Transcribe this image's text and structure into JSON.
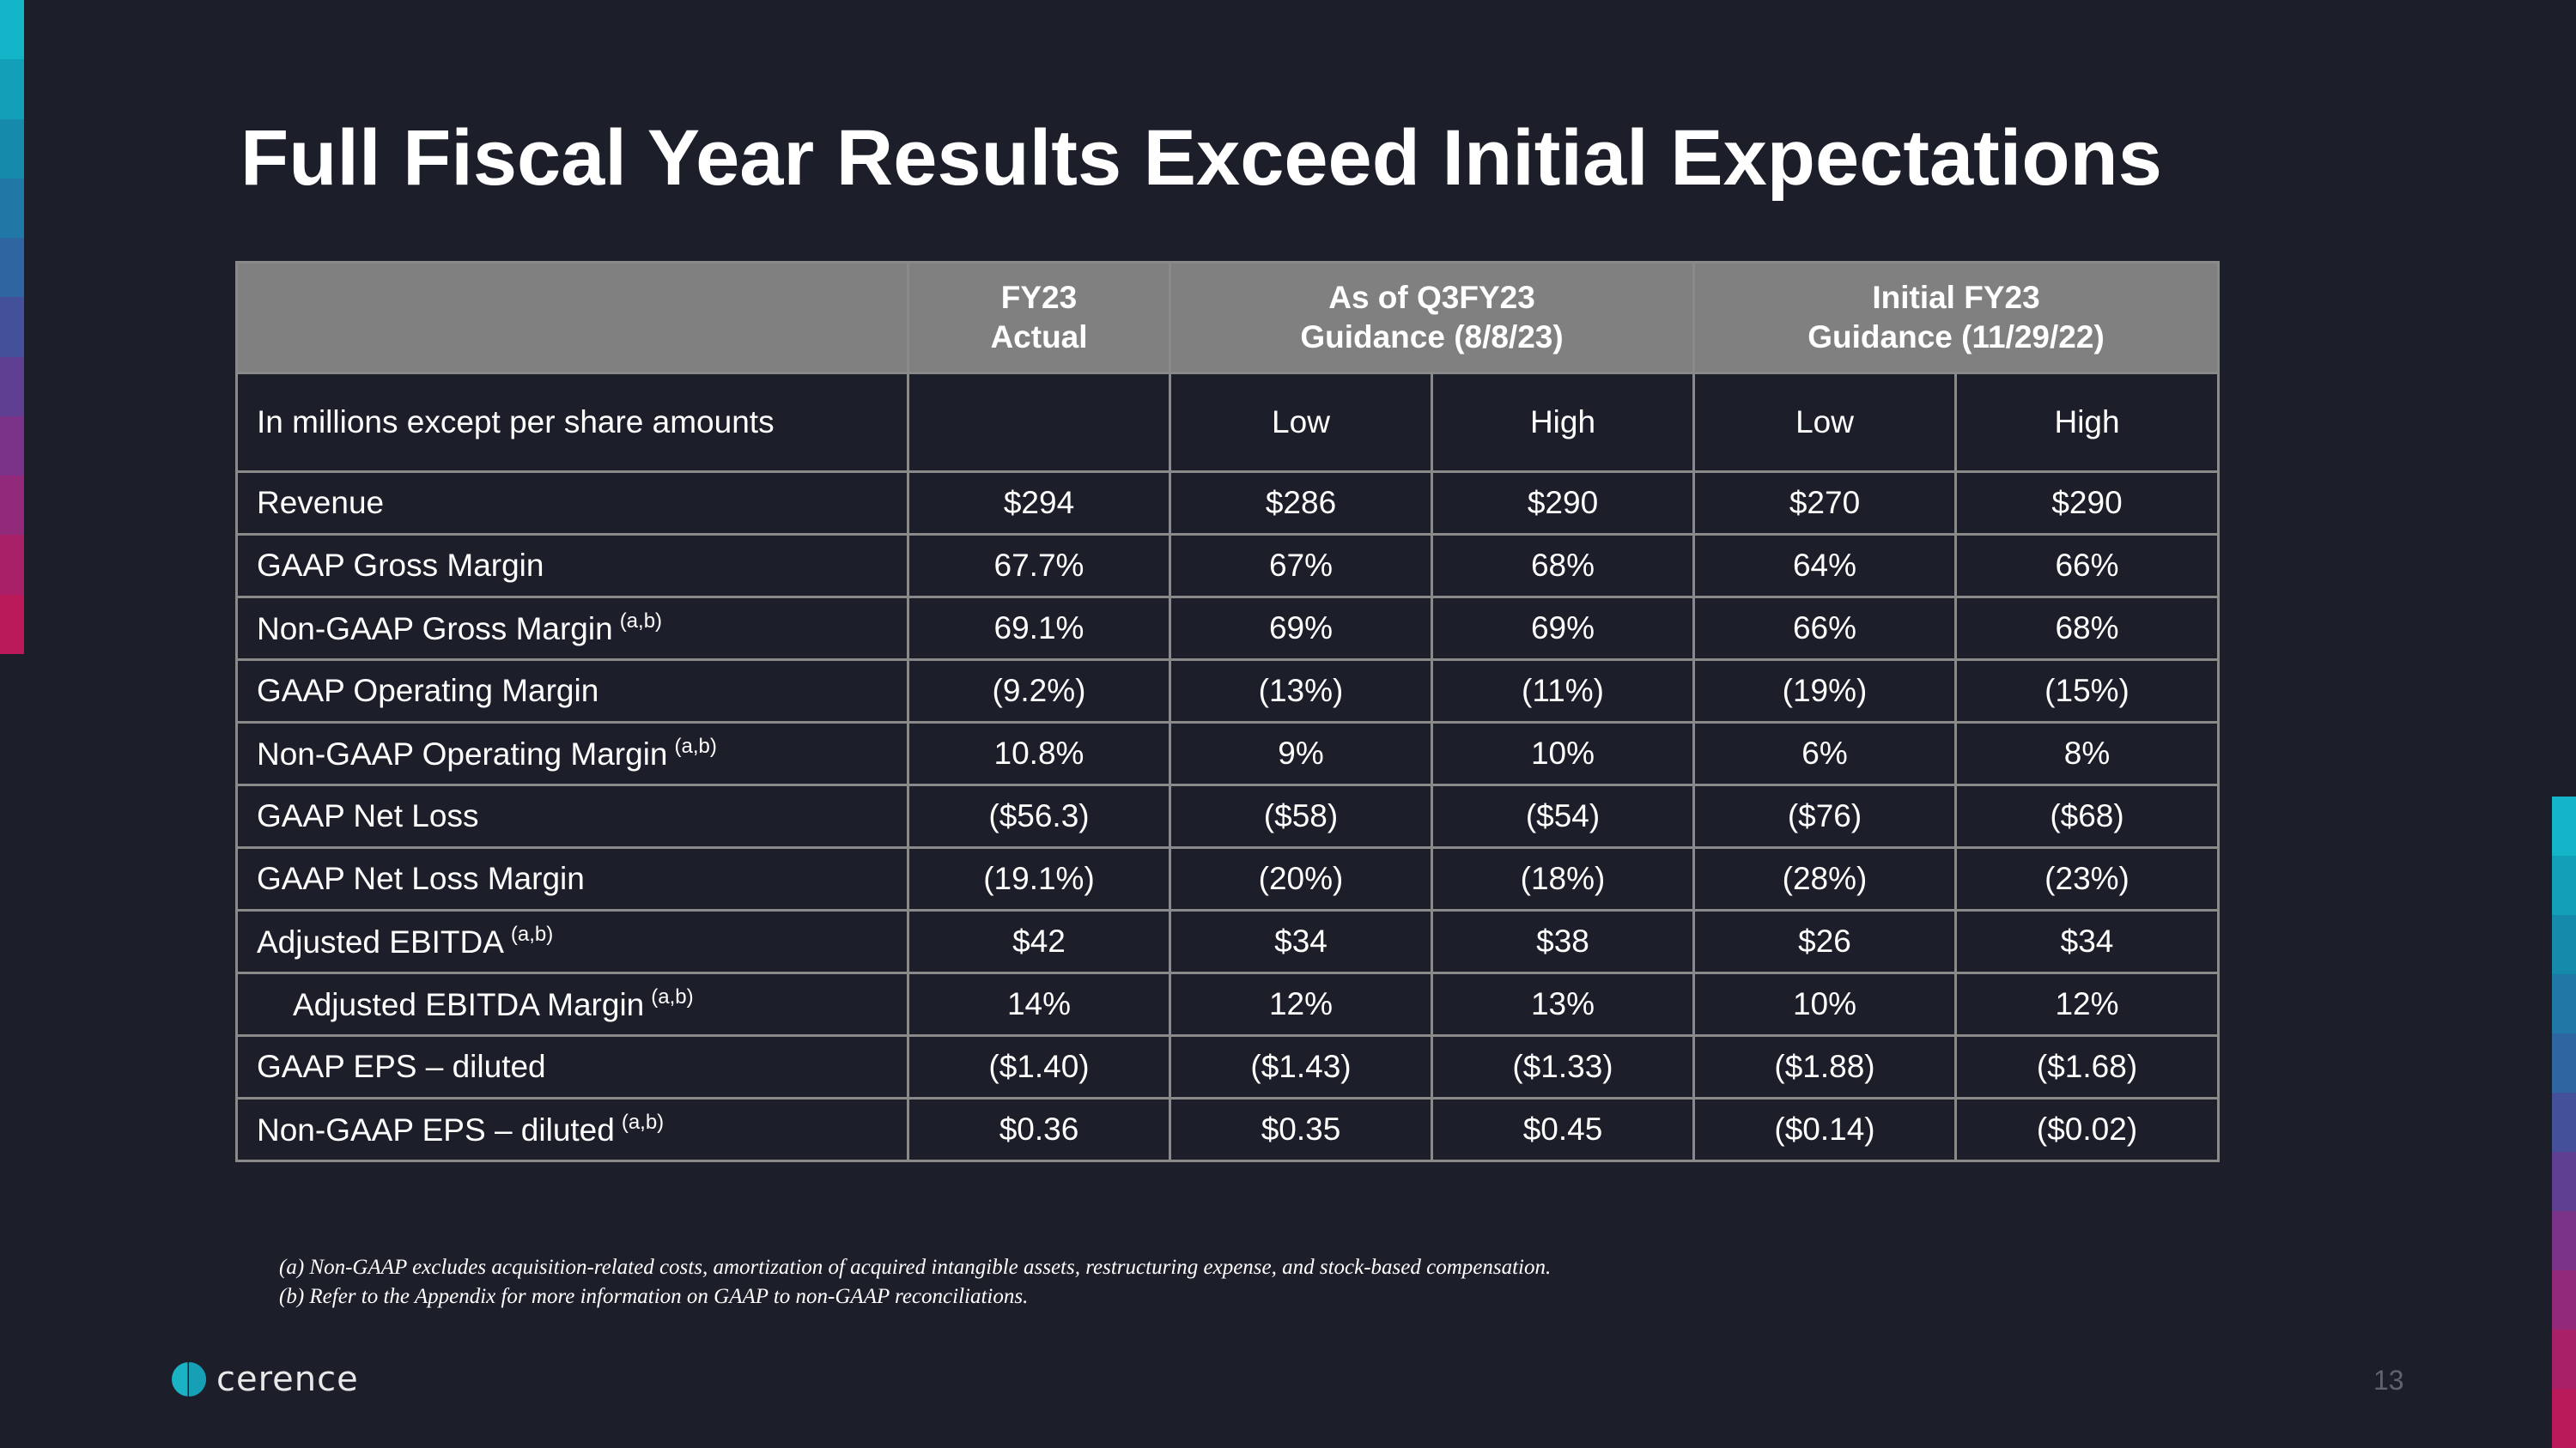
{
  "title": "Full Fiscal Year Results Exceed Initial Expectations",
  "table": {
    "headers": {
      "fy23_line1": "FY23",
      "fy23_line2": "Actual",
      "q3_line1": "As of Q3FY23",
      "q3_line2": "Guidance (8/8/23)",
      "initial_line1": "Initial FY23",
      "initial_line2": "Guidance (11/29/22)"
    },
    "subheader": {
      "label": "In millions except per share amounts",
      "low1": "Low",
      "high1": "High",
      "low2": "Low",
      "high2": "High"
    },
    "rows": [
      {
        "label": "Revenue",
        "note": "",
        "values": [
          "$294",
          "$286",
          "$290",
          "$270",
          "$290"
        ]
      },
      {
        "label": "GAAP Gross Margin",
        "note": "",
        "values": [
          "67.7%",
          "67%",
          "68%",
          "64%",
          "66%"
        ]
      },
      {
        "label": "Non-GAAP Gross Margin",
        "note": "(a,b)",
        "values": [
          "69.1%",
          "69%",
          "69%",
          "66%",
          "68%"
        ]
      },
      {
        "label": "GAAP Operating Margin",
        "note": "",
        "values": [
          "(9.2%)",
          "(13%)",
          "(11%)",
          "(19%)",
          "(15%)"
        ]
      },
      {
        "label": "Non-GAAP Operating Margin",
        "note": "(a,b)",
        "values": [
          "10.8%",
          "9%",
          "10%",
          "6%",
          "8%"
        ]
      },
      {
        "label": "GAAP Net Loss",
        "note": "",
        "values": [
          "($56.3)",
          "($58)",
          "($54)",
          "($76)",
          "($68)"
        ]
      },
      {
        "label": "GAAP Net Loss Margin",
        "note": "",
        "values": [
          "(19.1%)",
          "(20%)",
          "(18%)",
          "(28%)",
          "(23%)"
        ]
      },
      {
        "label": "Adjusted EBITDA",
        "note": "(a,b)",
        "values": [
          "$42",
          "$34",
          "$38",
          "$26",
          "$34"
        ]
      },
      {
        "label": "Adjusted EBITDA Margin",
        "note": "(a,b)",
        "values": [
          "14%",
          "12%",
          "13%",
          "10%",
          "12%"
        ]
      },
      {
        "label": "GAAP EPS – diluted",
        "note": "",
        "values": [
          "($1.40)",
          "($1.43)",
          "($1.33)",
          "($1.88)",
          "($1.68)"
        ]
      },
      {
        "label": "Non-GAAP EPS – diluted",
        "note": "(a,b)",
        "values": [
          "$0.36",
          "$0.35",
          "$0.45",
          "($0.14)",
          "($0.02)"
        ]
      }
    ]
  },
  "footnotes": {
    "a": "(a) Non-GAAP excludes acquisition-related costs, amortization of acquired intangible assets, restructuring expense, and stock-based compensation.",
    "b": "(b) Refer to the Appendix for more information on GAAP to non-GAAP reconciliations."
  },
  "logo": {
    "wordmark": "cerence",
    "trademark": "·"
  },
  "page_number": "13",
  "colors": {
    "background": "#1c1f2a",
    "header_fill": "#808080",
    "grid": "#8a8a8a",
    "accent_teal": "#1ab3c6",
    "accent_magenta": "#c2185b"
  }
}
